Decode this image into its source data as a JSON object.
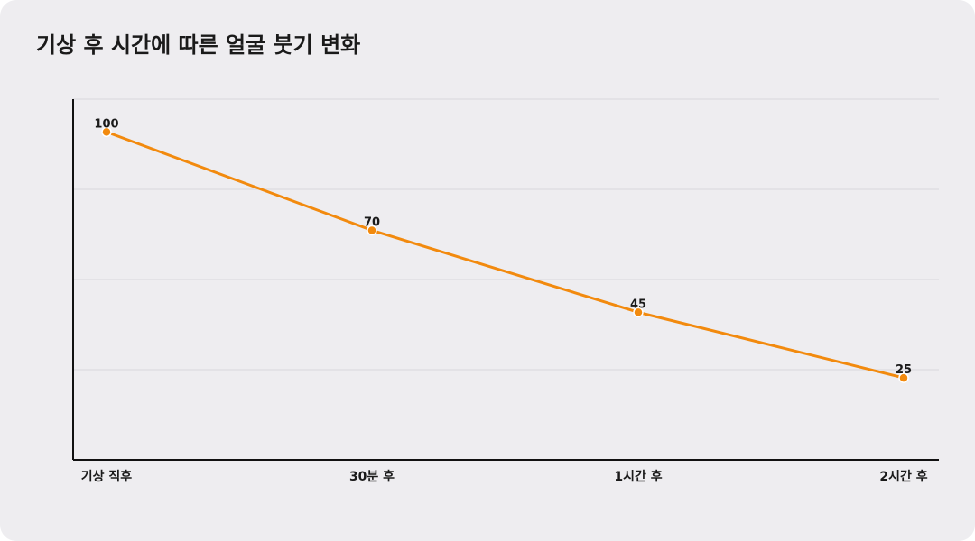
{
  "chart_data": {
    "type": "line",
    "title": "기상 후 시간에 따른 얼굴 붓기 변화",
    "categories": [
      "기상 직후",
      "30분 후",
      "1시간 후",
      "2시간 후"
    ],
    "series": [
      {
        "values": [
          100,
          70,
          45,
          25
        ]
      }
    ],
    "ylim": [
      0,
      110
    ],
    "grid": true,
    "legend": "none",
    "colors": {
      "line": "#f28a0e",
      "point": "#f28a0e",
      "grid": "#d8d7dc",
      "axis": "#111111"
    }
  }
}
